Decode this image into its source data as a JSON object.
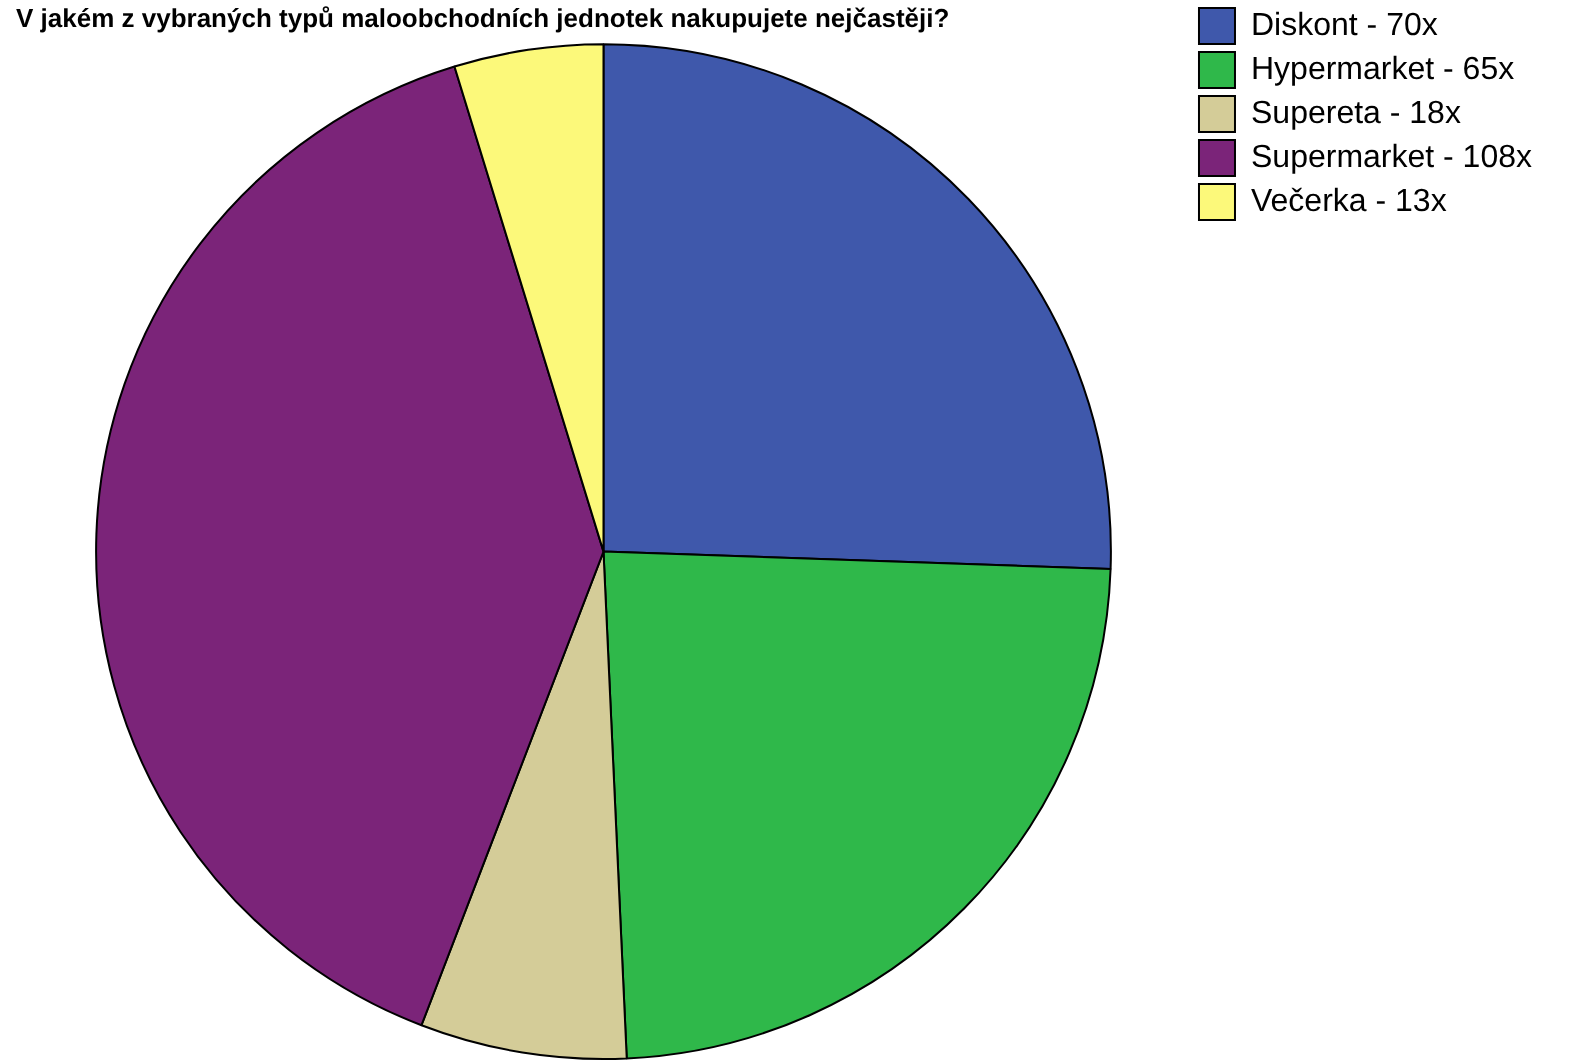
{
  "chart_data": {
    "type": "pie",
    "title": "V jakém z vybraných typů maloobchodních jednotek nakupujete nejčastěji?",
    "categories": [
      "Diskont",
      "Hypermarket",
      "Supereta",
      "Supermarket",
      "Večerka"
    ],
    "value_labels": [
      "70x",
      "65x",
      "18x",
      "108x",
      "13x"
    ],
    "values": [
      70,
      65,
      18,
      108,
      13
    ],
    "colors": [
      "#3f58ab",
      "#2fb84a",
      "#d4cc98",
      "#7b2479",
      "#fcf97a"
    ],
    "legend": "top right"
  }
}
